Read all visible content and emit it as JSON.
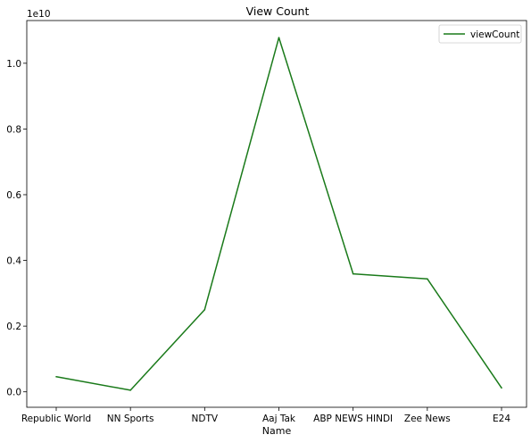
{
  "chart_data": {
    "type": "line",
    "title": "View Count",
    "xlabel": "Name",
    "ylabel": "",
    "categories": [
      "Republic World",
      "NN Sports",
      "NDTV",
      "Aaj Tak",
      "ABP NEWS HINDI",
      "Zee News",
      "E24"
    ],
    "series": [
      {
        "name": "viewCount",
        "color": "#1a7a1a",
        "values": [
          460000000,
          50000000,
          2500000000,
          10780000000,
          3590000000,
          3440000000,
          120000000
        ]
      }
    ],
    "ylim": [
      -470000000,
      11300000000
    ],
    "yticks": [
      0.0,
      0.2,
      0.4,
      0.6,
      0.8,
      1.0
    ],
    "ytick_labels": [
      "0.0",
      "0.2",
      "0.4",
      "0.6",
      "0.8",
      "1.0"
    ],
    "y_offset_label": "1e10",
    "grid": false,
    "legend_position": "top-right"
  }
}
